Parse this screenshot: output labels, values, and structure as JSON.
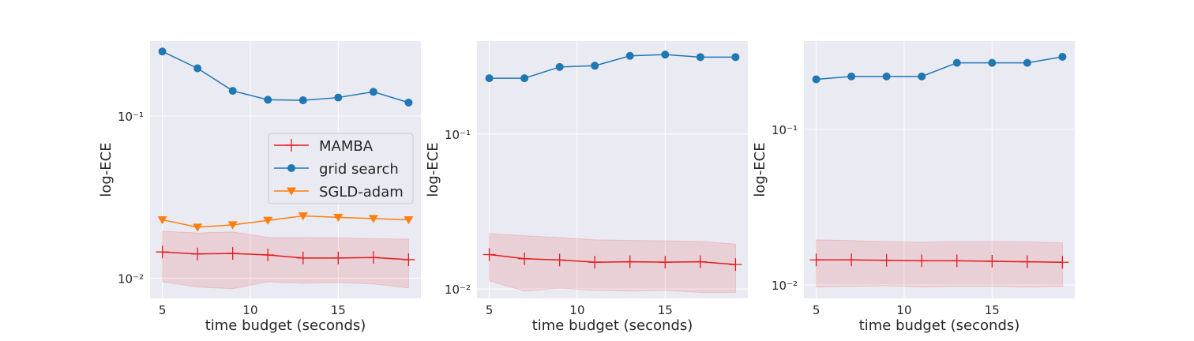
{
  "chart_data": [
    {
      "type": "line",
      "xlabel": "time budget (seconds)",
      "ylabel": "log-ECE",
      "yscale": "log",
      "xlim": [
        4.3,
        19.7
      ],
      "ylim": [
        0.0075,
        0.29
      ],
      "x_ticks": [
        5,
        10,
        15
      ],
      "y_ticks": [
        {
          "value": 0.1,
          "label": "10⁻¹"
        },
        {
          "value": 0.01,
          "label": "10⁻²"
        }
      ],
      "grid": true,
      "legend": "center-right",
      "series": [
        {
          "name": "MAMBA",
          "color": "#e41a1c",
          "marker": "plus",
          "x": [
            5,
            7,
            9,
            11,
            13,
            15,
            17,
            19
          ],
          "y": [
            0.0145,
            0.0141,
            0.0142,
            0.0139,
            0.0133,
            0.0133,
            0.0134,
            0.013
          ],
          "band_low": [
            0.0095,
            0.0088,
            0.0086,
            0.0095,
            0.0093,
            0.0094,
            0.0092,
            0.0087
          ],
          "band_high": [
            0.0195,
            0.019,
            0.0193,
            0.0178,
            0.0178,
            0.0177,
            0.0175,
            0.0174
          ]
        },
        {
          "name": "grid search",
          "color": "#1f77b4",
          "marker": "circle",
          "x": [
            5,
            7,
            9,
            11,
            13,
            15,
            17,
            19
          ],
          "y": [
            0.25,
            0.197,
            0.143,
            0.126,
            0.125,
            0.13,
            0.141,
            0.121
          ]
        },
        {
          "name": "SGLD-adam",
          "color": "#ff7f0e",
          "marker": "triangle-down",
          "x": [
            5,
            7,
            9,
            11,
            13,
            15,
            17,
            19
          ],
          "y": [
            0.0229,
            0.0206,
            0.0213,
            0.0227,
            0.0242,
            0.0237,
            0.0233,
            0.0229
          ]
        }
      ]
    },
    {
      "type": "line",
      "xlabel": "time budget (seconds)",
      "ylabel": "log-ECE",
      "yscale": "log",
      "xlim": [
        4.3,
        19.7
      ],
      "ylim": [
        0.0087,
        0.4
      ],
      "x_ticks": [
        5,
        10,
        15
      ],
      "y_ticks": [
        {
          "value": 0.1,
          "label": "10⁻¹"
        },
        {
          "value": 0.01,
          "label": "10⁻²"
        }
      ],
      "grid": true,
      "series": [
        {
          "name": "MAMBA",
          "color": "#e41a1c",
          "marker": "plus",
          "x": [
            5,
            7,
            9,
            11,
            13,
            15,
            17,
            19
          ],
          "y": [
            0.0167,
            0.0157,
            0.0154,
            0.0149,
            0.015,
            0.0149,
            0.015,
            0.0144
          ],
          "band_low": [
            0.0113,
            0.0097,
            0.0101,
            0.0098,
            0.0097,
            0.0098,
            0.0095,
            0.0095
          ],
          "band_high": [
            0.0228,
            0.0221,
            0.0215,
            0.0208,
            0.0206,
            0.0205,
            0.0203,
            0.0195
          ]
        },
        {
          "name": "grid search",
          "color": "#1f77b4",
          "marker": "circle",
          "x": [
            5,
            7,
            9,
            11,
            13,
            15,
            17,
            19
          ],
          "y": [
            0.23,
            0.23,
            0.272,
            0.277,
            0.321,
            0.327,
            0.315,
            0.315
          ]
        }
      ]
    },
    {
      "type": "line",
      "xlabel": "time budget (seconds)",
      "ylabel": "log-ECE",
      "yscale": "log",
      "xlim": [
        4.3,
        19.7
      ],
      "ylim": [
        0.0082,
        0.37
      ],
      "x_ticks": [
        5,
        10,
        15
      ],
      "y_ticks": [
        {
          "value": 0.1,
          "label": "10⁻¹"
        },
        {
          "value": 0.01,
          "label": "10⁻²"
        }
      ],
      "grid": true,
      "series": [
        {
          "name": "MAMBA",
          "color": "#e41a1c",
          "marker": "plus",
          "x": [
            5,
            7,
            9,
            11,
            13,
            15,
            17,
            19
          ],
          "y": [
            0.0145,
            0.0145,
            0.0144,
            0.0143,
            0.0143,
            0.0142,
            0.0141,
            0.014
          ],
          "band_low": [
            0.0097,
            0.0098,
            0.0099,
            0.0097,
            0.0098,
            0.0098,
            0.0097,
            0.0098
          ],
          "band_high": [
            0.0195,
            0.0193,
            0.019,
            0.0188,
            0.019,
            0.019,
            0.0189,
            0.0187
          ]
        },
        {
          "name": "grid search",
          "color": "#1f77b4",
          "marker": "circle",
          "x": [
            5,
            7,
            9,
            11,
            13,
            15,
            17,
            19
          ],
          "y": [
            0.21,
            0.219,
            0.219,
            0.219,
            0.268,
            0.268,
            0.268,
            0.293
          ]
        }
      ]
    }
  ]
}
